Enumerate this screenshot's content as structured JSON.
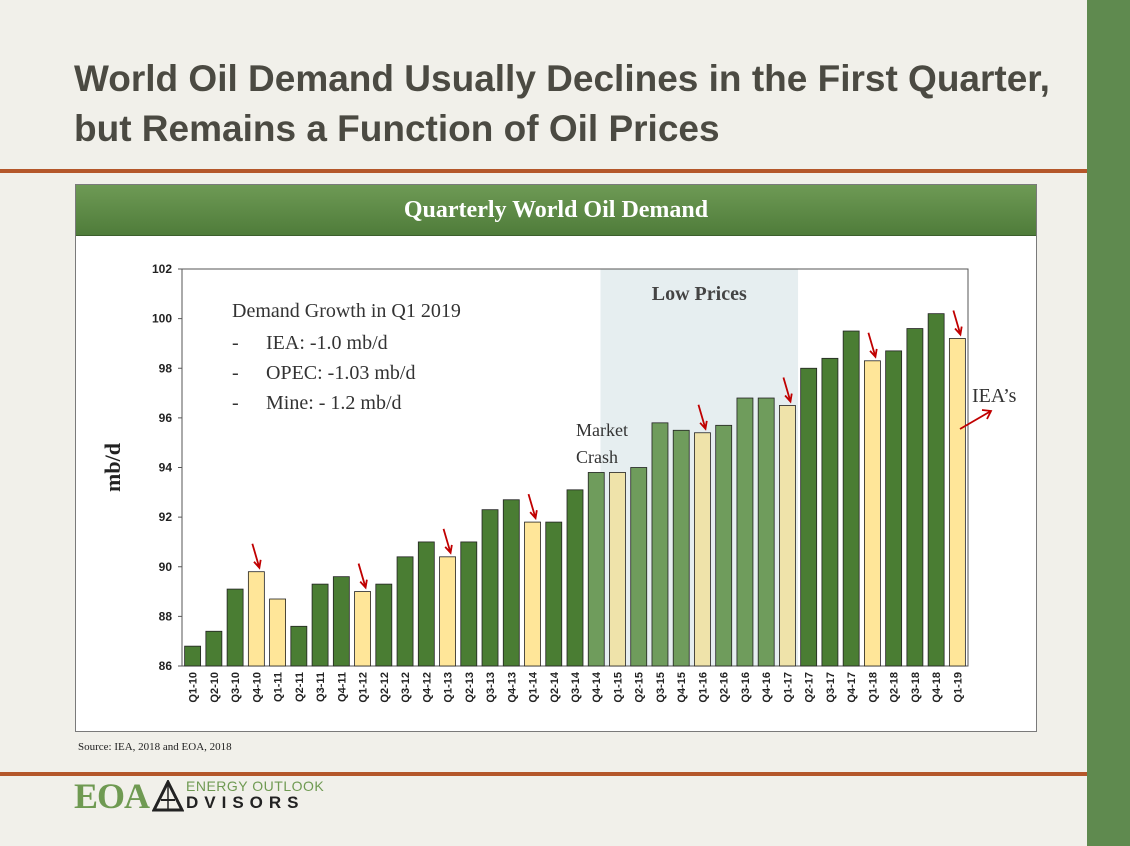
{
  "slide": {
    "title": "World Oil Demand Usually Declines in the First Quarter, but Remains a Function of Oil Prices",
    "source": "Source:  IEA, 2018 and EOA, 2018"
  },
  "logo": {
    "letters": "EOA",
    "line1": "ENERGY OUTLOOK",
    "line2": "DVISORS"
  },
  "colors": {
    "bar_green": "#4a7d33",
    "bar_yellow": "#ffe699",
    "low_price_green": "#6f9c5c",
    "low_price_yellow": "#efe3aa",
    "arrow": "#c00000",
    "header_green": "#5d8a46",
    "accent_rule": "#b4572a"
  },
  "chart_data": {
    "type": "bar",
    "title": "Quarterly World Oil Demand",
    "xlabel": "",
    "ylabel": "mb/d",
    "ylim": [
      86,
      102
    ],
    "yticks": [
      86,
      88,
      90,
      92,
      94,
      96,
      98,
      100,
      102
    ],
    "grid": false,
    "categories": [
      "Q1-10",
      "Q2-10",
      "Q3-10",
      "Q4-10",
      "Q1-11",
      "Q2-11",
      "Q3-11",
      "Q4-11",
      "Q1-12",
      "Q2-12",
      "Q3-12",
      "Q4-12",
      "Q1-13",
      "Q2-13",
      "Q3-13",
      "Q4-13",
      "Q1-14",
      "Q2-14",
      "Q3-14",
      "Q4-14",
      "Q1-15",
      "Q2-15",
      "Q3-15",
      "Q4-15",
      "Q1-16",
      "Q2-16",
      "Q3-16",
      "Q4-16",
      "Q1-17",
      "Q2-17",
      "Q3-17",
      "Q4-17",
      "Q1-18",
      "Q2-18",
      "Q3-18",
      "Q4-18",
      "Q1-19"
    ],
    "values": [
      86.8,
      87.4,
      89.1,
      89.8,
      88.7,
      87.6,
      89.3,
      89.6,
      89.0,
      89.3,
      90.4,
      91.0,
      90.4,
      91.0,
      92.3,
      92.7,
      91.8,
      91.8,
      93.1,
      93.8,
      93.8,
      94.0,
      95.8,
      95.5,
      95.4,
      95.7,
      96.8,
      96.8,
      96.5,
      98.0,
      98.4,
      99.5,
      98.3,
      98.7,
      99.6,
      100.2,
      99.2
    ],
    "highlighted_quarters": [
      "Q4-10",
      "Q1-11",
      "Q1-12",
      "Q1-13",
      "Q1-14",
      "Q1-15",
      "Q1-16",
      "Q1-17",
      "Q1-18",
      "Q1-19"
    ],
    "decline_arrows_at": [
      "Q4-10",
      "Q1-12",
      "Q1-13",
      "Q1-14",
      "Q1-16",
      "Q1-17",
      "Q1-18",
      "Q1-19"
    ],
    "shaded_region": {
      "label": "Low Prices",
      "from": "Q4-14",
      "to": "Q1-17"
    },
    "annotations": {
      "growth_title": "Demand Growth in Q1 2019",
      "growth_items": [
        {
          "bullet": "-",
          "text": "IEA: -1.0 mb/d"
        },
        {
          "bullet": "-",
          "text": "OPEC: -1.03 mb/d"
        },
        {
          "bullet": "-",
          "text": "Mine: - 1.2 mb/d"
        }
      ],
      "market_crash_line1": "Market",
      "market_crash_line2": "Crash",
      "iea_label": "IEA’s"
    }
  }
}
